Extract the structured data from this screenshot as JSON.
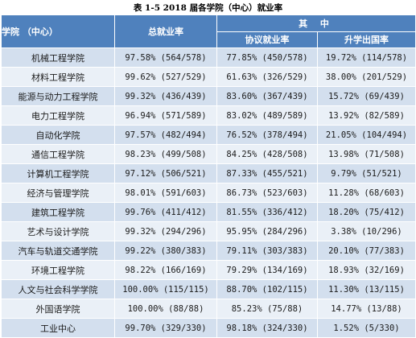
{
  "title": "表 1-5   2018 届各学院（中心）就业率",
  "header": {
    "college": "学院    （中心）",
    "total_rate": "总就业率",
    "among": "其 中",
    "agreement_rate": "协议就业率",
    "further_study_rate": "升学出国率"
  },
  "colors": {
    "header_bg": "#4f81bd",
    "row_odd_bg": "#d3dfee",
    "row_even_bg": "#eaf0f7"
  },
  "rows": [
    {
      "name": "机械工程学院",
      "total": "97.58% (564/578)",
      "agreement": "77.85% (450/578)",
      "further": "19.72% (114/578)"
    },
    {
      "name": "材料工程学院",
      "total": "99.62% (527/529)",
      "agreement": "61.63% (326/529)",
      "further": "38.00% (201/529)"
    },
    {
      "name": "能源与动力工程学院",
      "total": "99.32% (436/439)",
      "agreement": "83.60% (367/439)",
      "further": "15.72% (69/439)"
    },
    {
      "name": "电力工程学院",
      "total": "96.94% (571/589)",
      "agreement": "83.02% (489/589)",
      "further": "13.92% (82/589)"
    },
    {
      "name": "自动化学院",
      "total": "97.57% (482/494)",
      "agreement": "76.52% (378/494)",
      "further": "21.05% (104/494)"
    },
    {
      "name": "通信工程学院",
      "total": "98.23% (499/508)",
      "agreement": "84.25% (428/508)",
      "further": "13.98% (71/508)"
    },
    {
      "name": "计算机工程学院",
      "total": "97.12% (506/521)",
      "agreement": "87.33% (455/521)",
      "further": "9.79% (51/521)"
    },
    {
      "name": "经济与管理学院",
      "total": "98.01% (591/603)",
      "agreement": "86.73% (523/603)",
      "further": "11.28% (68/603)"
    },
    {
      "name": "建筑工程学院",
      "total": "99.76% (411/412)",
      "agreement": "81.55% (336/412)",
      "further": "18.20% (75/412)"
    },
    {
      "name": "艺术与设计学院",
      "total": "99.32% (294/296)",
      "agreement": "95.95% (284/296)",
      "further": "3.38% (10/296)"
    },
    {
      "name": "汽车与轨道交通学院",
      "total": "99.22% (380/383)",
      "agreement": "79.11% (303/383)",
      "further": "20.10% (77/383)"
    },
    {
      "name": "环境工程学院",
      "total": "98.22% (166/169)",
      "agreement": "79.29% (134/169)",
      "further": "18.93% (32/169)"
    },
    {
      "name": "人文与社会科学学院",
      "total": "100.00% (115/115)",
      "agreement": "88.70% (102/115)",
      "further": "11.30% (13/115)"
    },
    {
      "name": "外国语学院",
      "total": "100.00% (88/88)",
      "agreement": "85.23% (75/88)",
      "further": "14.77% (13/88)"
    },
    {
      "name": "工业中心",
      "total": "99.70% (329/330)",
      "agreement": "98.18% (324/330)",
      "further": "1.52% (5/330)"
    }
  ]
}
